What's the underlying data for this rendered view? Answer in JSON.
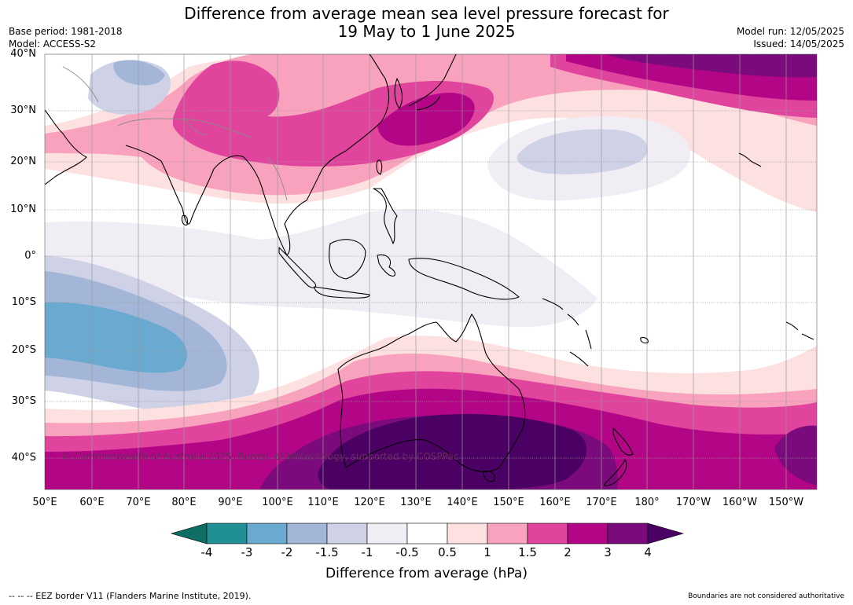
{
  "title_line1": "Difference from average mean sea level pressure forecast for",
  "title_line2": "19 May to 1 June 2025",
  "meta_left": [
    "Base period: 1981-2018",
    "Model: ACCESS-S2"
  ],
  "meta_right": [
    "Model run: 12/05/2025",
    "Issued: 14/05/2025"
  ],
  "copyright": "© Commonwealth of Australia 2025, Bureau of Meteorology, supported by COSPPac",
  "lat_labels": [
    "40°N",
    "30°N",
    "20°N",
    "10°N",
    "0°",
    "10°S",
    "20°S",
    "30°S",
    "40°S"
  ],
  "lon_labels": [
    "50°E",
    "60°E",
    "70°E",
    "80°E",
    "90°E",
    "100°E",
    "110°E",
    "120°E",
    "130°E",
    "140°E",
    "150°E",
    "160°E",
    "170°E",
    "180°",
    "170°W",
    "160°W",
    "150°W"
  ],
  "colorbar": {
    "title": "Difference from average (hPa)",
    "ticks": [
      "-4",
      "-3",
      "-2",
      "-1.5",
      "-1",
      "-0.5",
      "0.5",
      "1",
      "1.5",
      "2",
      "3",
      "4"
    ],
    "colors": [
      "#0f6e63",
      "#1f9196",
      "#6aaad0",
      "#a4b6d8",
      "#cfd1e6",
      "#f1edf4",
      "#ffffff",
      "#fde0e0",
      "#f9a2bd",
      "#e0449d",
      "#b30686",
      "#7b0a7c",
      "#4b0063"
    ]
  },
  "footer_left": "--  --  -- EEZ border V11 (Flanders Marine Institute, 2019).",
  "footer_right": "Boundaries are not considered authoritative"
}
